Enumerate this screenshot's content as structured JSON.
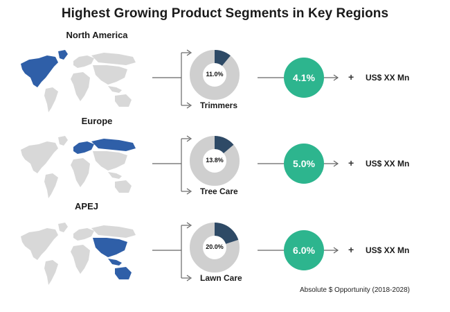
{
  "title": "Highest Growing Product Segments in Key Regions",
  "colors": {
    "highlight": "#2f5fa8",
    "land": "#d8d8d8",
    "donut_bg": "#cfcfcf",
    "donut_fg": "#2e4a66",
    "growth": "#2db58e"
  },
  "regions": [
    {
      "name": "North America",
      "segment": "Trimmers",
      "share_label": "11.0%",
      "share": 11.0,
      "growth": "4.1%",
      "plus": "+",
      "amount": "US$ XX Mn",
      "map_icon": "world-map-north-america-highlighted"
    },
    {
      "name": "Europe",
      "segment": "Tree Care",
      "share_label": "13.8%",
      "share": 13.8,
      "growth": "5.0%",
      "plus": "+",
      "amount": "US$ XX Mn",
      "map_icon": "world-map-europe-highlighted"
    },
    {
      "name": "APEJ",
      "segment": "Lawn Care",
      "share_label": "20.0%",
      "share": 20.0,
      "growth": "6.0%",
      "plus": "+",
      "amount": "US$ XX Mn",
      "map_icon": "world-map-apej-highlighted"
    }
  ],
  "footnote": "Absolute $ Opportunity (2018-2028)"
}
